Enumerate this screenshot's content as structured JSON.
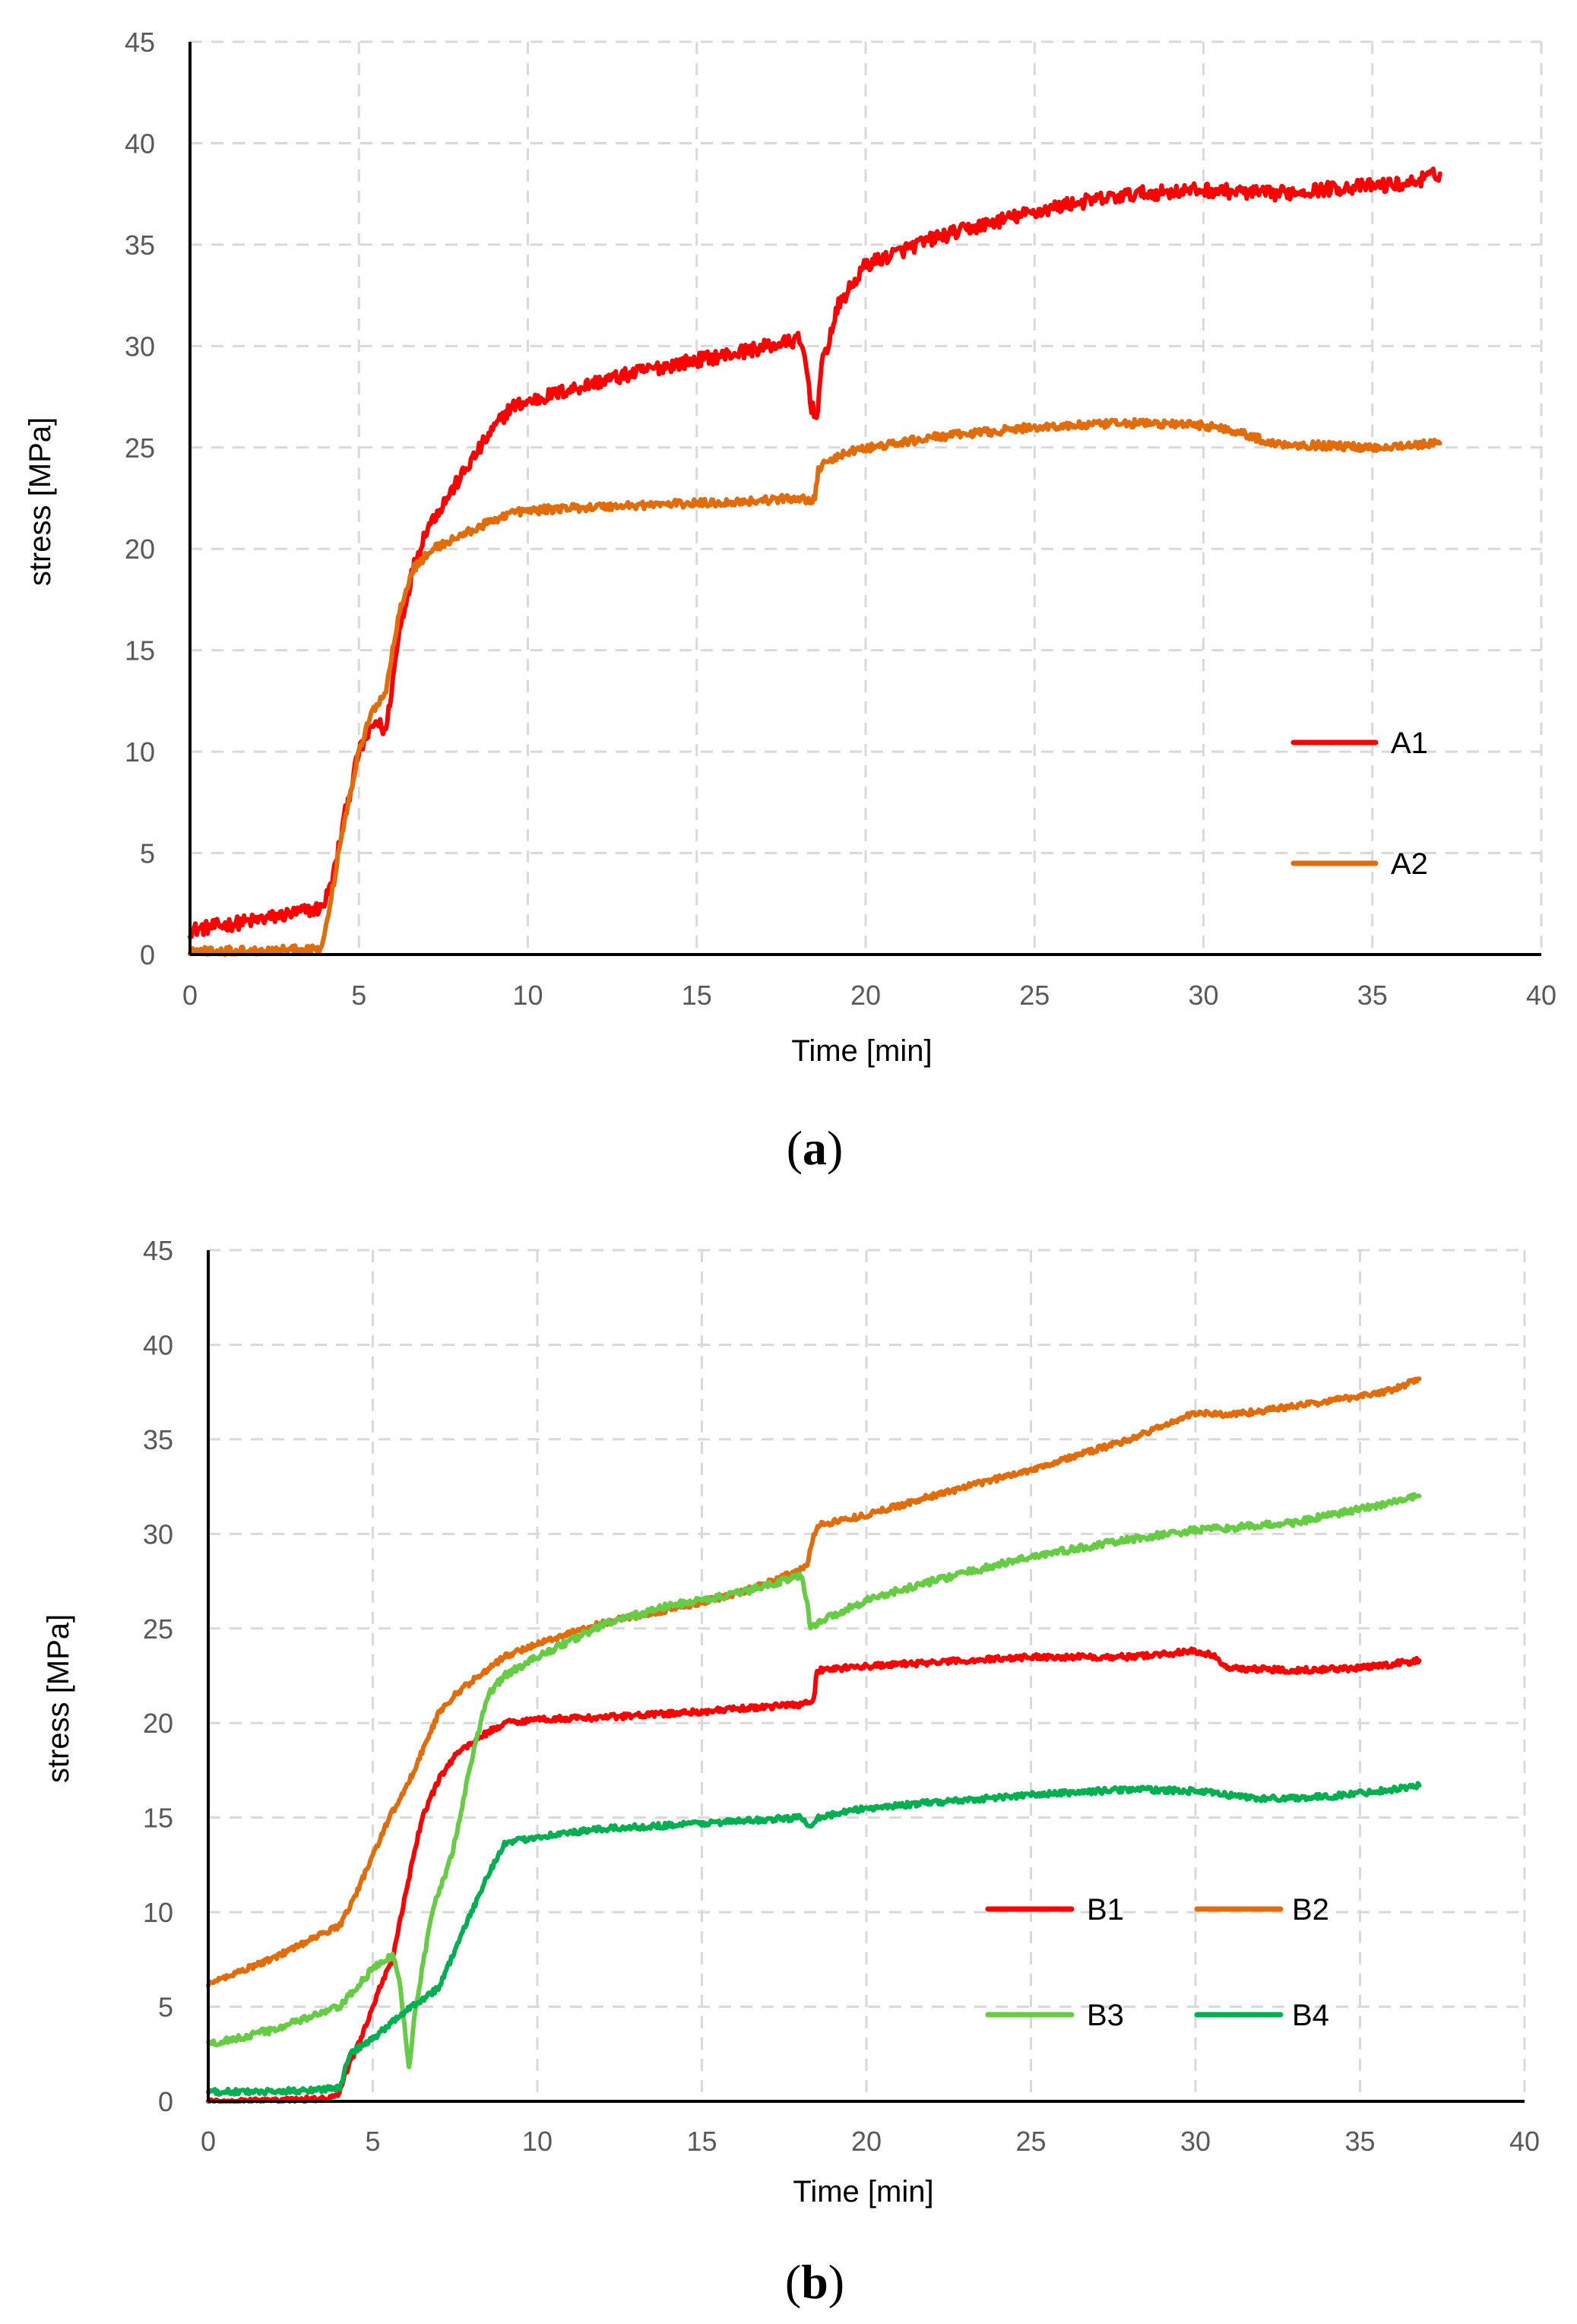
{
  "chart_data": [
    {
      "type": "line",
      "panel": "a",
      "caption_letter": "a",
      "xlabel": "Time [min]",
      "ylabel": "stress [MPa]",
      "xlim": [
        0,
        40
      ],
      "ylim": [
        0,
        45
      ],
      "x_ticks": [
        "0",
        "5",
        "10",
        "15",
        "20",
        "25",
        "30",
        "35",
        "40"
      ],
      "y_ticks": [
        "0",
        "5",
        "10",
        "15",
        "20",
        "25",
        "30",
        "35",
        "40",
        "45"
      ],
      "grid": true,
      "legend_position": "right",
      "series": [
        {
          "name": "A1",
          "color": "#ff0000",
          "noise": 0.35,
          "points": [
            [
              0,
              1.2
            ],
            [
              2,
              1.7
            ],
            [
              3.9,
              2.3
            ],
            [
              4.2,
              3.5
            ],
            [
              4.6,
              7
            ],
            [
              5,
              10
            ],
            [
              5.5,
              11.5
            ],
            [
              5.8,
              11
            ],
            [
              6.2,
              16
            ],
            [
              6.6,
              19
            ],
            [
              7,
              21
            ],
            [
              7.6,
              22.5
            ],
            [
              8.2,
              24
            ],
            [
              8.8,
              25.5
            ],
            [
              9.5,
              27
            ],
            [
              10.5,
              27.5
            ],
            [
              12,
              28.2
            ],
            [
              14,
              29
            ],
            [
              16,
              29.6
            ],
            [
              18,
              30.3
            ],
            [
              18.2,
              29.5
            ],
            [
              18.4,
              27
            ],
            [
              18.55,
              26.5
            ],
            [
              18.7,
              29
            ],
            [
              19.2,
              32
            ],
            [
              20,
              34
            ],
            [
              22,
              35.3
            ],
            [
              24,
              36.2
            ],
            [
              26,
              37
            ],
            [
              28,
              37.5
            ],
            [
              30,
              37.7
            ],
            [
              32,
              37.5
            ],
            [
              34,
              37.8
            ],
            [
              36,
              38
            ],
            [
              37,
              38.5
            ]
          ]
        },
        {
          "name": "A2",
          "color": "#e36c0a",
          "noise": 0.2,
          "points": [
            [
              0,
              0.2
            ],
            [
              2,
              0.2
            ],
            [
              3.9,
              0.3
            ],
            [
              4.1,
              2
            ],
            [
              4.5,
              6
            ],
            [
              5,
              10
            ],
            [
              5.4,
              12
            ],
            [
              5.8,
              13
            ],
            [
              6.2,
              17
            ],
            [
              6.6,
              19
            ],
            [
              7.2,
              20
            ],
            [
              8.2,
              20.8
            ],
            [
              9.5,
              21.8
            ],
            [
              11,
              22
            ],
            [
              14,
              22.2
            ],
            [
              16,
              22.3
            ],
            [
              18,
              22.5
            ],
            [
              18.5,
              22.4
            ],
            [
              18.6,
              24
            ],
            [
              19.5,
              24.8
            ],
            [
              22,
              25.5
            ],
            [
              25,
              26
            ],
            [
              28,
              26.2
            ],
            [
              30,
              26.1
            ],
            [
              31,
              25.8
            ],
            [
              32,
              25.2
            ],
            [
              35,
              25
            ],
            [
              37,
              25.2
            ]
          ]
        }
      ]
    },
    {
      "type": "line",
      "panel": "b",
      "caption_letter": "b",
      "xlabel": "Time [min]",
      "ylabel": "stress [MPa]",
      "xlim": [
        0,
        40
      ],
      "ylim": [
        0,
        45
      ],
      "x_ticks": [
        "0",
        "5",
        "10",
        "15",
        "20",
        "25",
        "30",
        "35",
        "40"
      ],
      "y_ticks": [
        "0",
        "5",
        "10",
        "15",
        "20",
        "25",
        "30",
        "35",
        "40",
        "45"
      ],
      "grid": true,
      "legend_position": "right",
      "series": [
        {
          "name": "B1",
          "color": "#ff0000",
          "noise": 0.15,
          "points": [
            [
              0,
              0
            ],
            [
              2,
              0
            ],
            [
              3.9,
              0.2
            ],
            [
              4.3,
              2
            ],
            [
              4.8,
              4
            ],
            [
              5.2,
              6
            ],
            [
              5.6,
              7.5
            ],
            [
              6,
              11
            ],
            [
              6.5,
              15
            ],
            [
              7,
              17
            ],
            [
              7.5,
              18.3
            ],
            [
              8.2,
              19.2
            ],
            [
              9,
              20
            ],
            [
              10,
              20.2
            ],
            [
              12,
              20.3
            ],
            [
              15,
              20.6
            ],
            [
              18,
              21
            ],
            [
              18.4,
              21.2
            ],
            [
              18.5,
              22.8
            ],
            [
              20,
              23
            ],
            [
              25,
              23.5
            ],
            [
              28,
              23.5
            ],
            [
              30,
              23.8
            ],
            [
              30.5,
              23.6
            ],
            [
              31,
              22.9
            ],
            [
              33,
              22.8
            ],
            [
              35,
              22.9
            ],
            [
              36.8,
              23.3
            ]
          ]
        },
        {
          "name": "B2",
          "color": "#e36c0a",
          "noise": 0.15,
          "points": [
            [
              0,
              6.2
            ],
            [
              2,
              7.6
            ],
            [
              4,
              9.3
            ],
            [
              4.5,
              11
            ],
            [
              5,
              13
            ],
            [
              5.5,
              15
            ],
            [
              6,
              16.5
            ],
            [
              6.5,
              18.5
            ],
            [
              7,
              20.5
            ],
            [
              7.5,
              21.5
            ],
            [
              8,
              22.2
            ],
            [
              9,
              23.5
            ],
            [
              10,
              24.2
            ],
            [
              12,
              25.3
            ],
            [
              14,
              26
            ],
            [
              16,
              26.8
            ],
            [
              17,
              27.4
            ],
            [
              18.2,
              28.3
            ],
            [
              18.4,
              30
            ],
            [
              18.6,
              30.5
            ],
            [
              20,
              31
            ],
            [
              22,
              32
            ],
            [
              25,
              33.4
            ],
            [
              28,
              35
            ],
            [
              30,
              36.4
            ],
            [
              31,
              36.3
            ],
            [
              32,
              36.5
            ],
            [
              34,
              37
            ],
            [
              36,
              37.6
            ],
            [
              36.8,
              38.2
            ]
          ]
        },
        {
          "name": "B3",
          "color": "#66cc44",
          "noise": 0.18,
          "points": [
            [
              0,
              3
            ],
            [
              2,
              3.8
            ],
            [
              4,
              5
            ],
            [
              5,
              7
            ],
            [
              5.6,
              7.7
            ],
            [
              5.8,
              6.5
            ],
            [
              6,
              3.5
            ],
            [
              6.1,
              1.8
            ],
            [
              6.3,
              5
            ],
            [
              6.8,
              10
            ],
            [
              7.4,
              13
            ],
            [
              8,
              18
            ],
            [
              8.5,
              21.5
            ],
            [
              9,
              22.5
            ],
            [
              10,
              23.5
            ],
            [
              12,
              25.2
            ],
            [
              14,
              26.2
            ],
            [
              16,
              26.8
            ],
            [
              17,
              27.3
            ],
            [
              18,
              27.8
            ],
            [
              18.2,
              26.5
            ],
            [
              18.3,
              25
            ],
            [
              18.5,
              25.3
            ],
            [
              20,
              26.5
            ],
            [
              22,
              27.5
            ],
            [
              25,
              28.8
            ],
            [
              28,
              29.7
            ],
            [
              30,
              30.2
            ],
            [
              31,
              30.3
            ],
            [
              33,
              30.6
            ],
            [
              35,
              31.3
            ],
            [
              36.8,
              32
            ]
          ]
        },
        {
          "name": "B4",
          "color": "#00b050",
          "noise": 0.15,
          "points": [
            [
              0,
              0.5
            ],
            [
              2,
              0.5
            ],
            [
              4,
              0.7
            ],
            [
              4.3,
              2.5
            ],
            [
              5,
              3.3
            ],
            [
              6,
              4.8
            ],
            [
              7,
              6
            ],
            [
              7.5,
              8
            ],
            [
              8,
              10
            ],
            [
              8.5,
              12
            ],
            [
              9,
              13.6
            ],
            [
              10,
              14
            ],
            [
              12,
              14.4
            ],
            [
              15,
              14.7
            ],
            [
              18,
              15
            ],
            [
              18.3,
              14.6
            ],
            [
              18.5,
              15
            ],
            [
              20,
              15.5
            ],
            [
              22,
              15.8
            ],
            [
              25,
              16.2
            ],
            [
              28,
              16.5
            ],
            [
              30,
              16.4
            ],
            [
              31,
              16.2
            ],
            [
              32,
              16
            ],
            [
              34,
              16.1
            ],
            [
              36,
              16.5
            ],
            [
              36.8,
              16.7
            ]
          ]
        }
      ]
    }
  ]
}
